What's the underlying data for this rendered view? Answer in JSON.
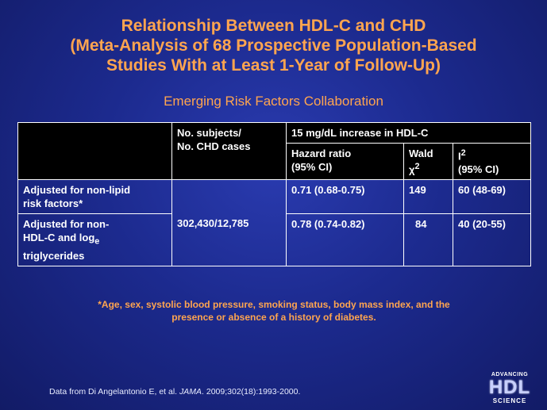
{
  "slide": {
    "title_lines": [
      "Relationship Between HDL-C and CHD",
      "(Meta-Analysis of 68 Prospective Population-Based",
      "Studies With at Least 1-Year of Follow-Up)"
    ],
    "subtitle": "Emerging Risk Factors Collaboration"
  },
  "table": {
    "header": {
      "subjects_line1": "No. subjects/",
      "subjects_line2": "No. CHD cases",
      "group": "15 mg/dL increase in HDL-C",
      "hr_line1": "Hazard ratio",
      "hr_line2": "(95%  CI)",
      "wald_line1": "Wald",
      "wald_line2": "χ",
      "wald_sup": "2",
      "i2_main": "I",
      "i2_sup": "2",
      "i2_line2": "(95%  CI)"
    },
    "subjects_value": "302,430/12,785",
    "rows": [
      {
        "label_line1": "Adjusted for non-lipid",
        "label_line2": "risk factors*",
        "hazard_ratio": "0.71 (0.68-0.75)",
        "wald": "149",
        "i2": "60 (48-69)"
      },
      {
        "label_line1": "Adjusted for non-",
        "label_line2": "HDL-C and log",
        "label_sub": "e",
        "label_line3": "triglycerides",
        "hazard_ratio": "0.78 (0.74-0.82)",
        "wald": "84",
        "i2": "40 (20-55)"
      }
    ]
  },
  "footnote": {
    "line1": "*Age, sex, systolic blood pressure, smoking status, body mass index, and the",
    "line2": "presence or absence of a history of diabetes."
  },
  "source": {
    "prefix": "Data from Di Angelantonio E, et al. ",
    "journal": "JAMA",
    "suffix": ". 2009;302(18):1993-2000."
  },
  "logo": {
    "line1": "ADVANCING",
    "line2": "HDL",
    "line3": "SCIENCE"
  }
}
